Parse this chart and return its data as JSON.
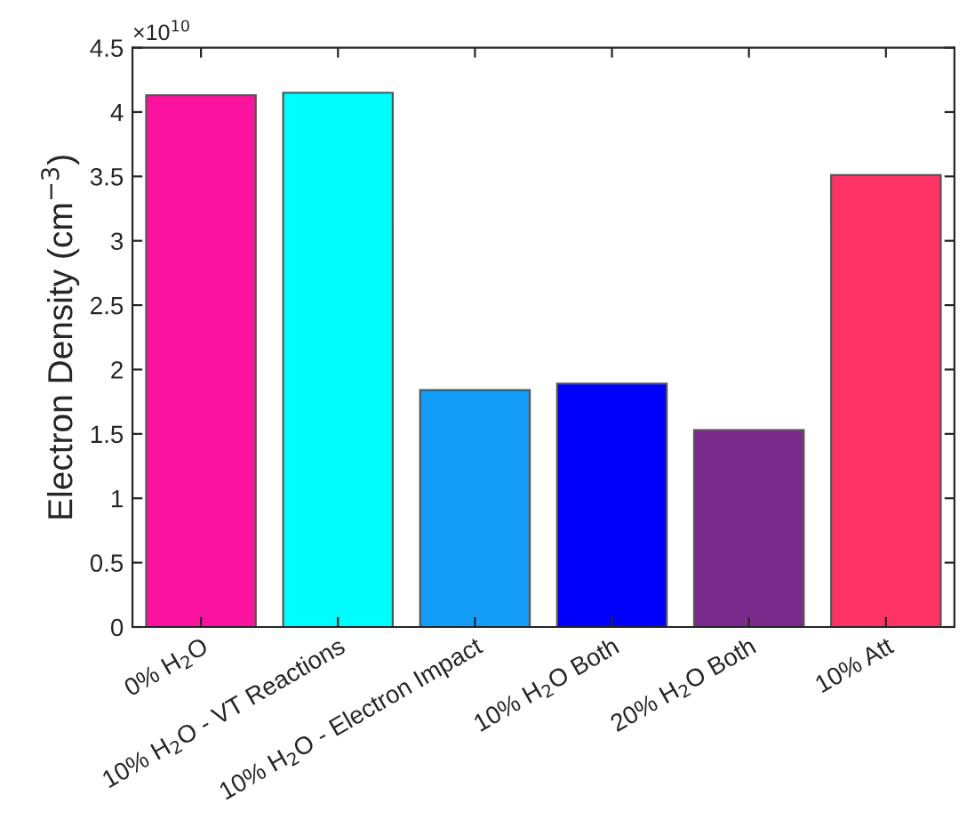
{
  "chart_data": {
    "type": "bar",
    "categories": [
      "0% H$_{2}$O",
      "10% H$_{2}$O - VT Reactions",
      "10% H$_{2}$O - Electron Impact",
      "10% H$_{2}$O Both",
      "20% H$_{2}$O Both",
      "10% Att"
    ],
    "values": [
      4.13,
      4.15,
      1.84,
      1.89,
      1.53,
      3.51
    ],
    "colors": [
      "#fb139f",
      "#00fdfd",
      "#139df9",
      "#0000fb",
      "#7b2b8b",
      "#fd3366"
    ],
    "ylabel": "Electron Density (cm$^{−3}$)",
    "annotations": [
      "×10$^{10}$"
    ],
    "ylim": [
      0,
      4.5
    ],
    "yticks": [
      0,
      0.5,
      1,
      1.5,
      2,
      2.5,
      3,
      3.5,
      4,
      4.5
    ],
    "grid": false,
    "legend": false
  }
}
